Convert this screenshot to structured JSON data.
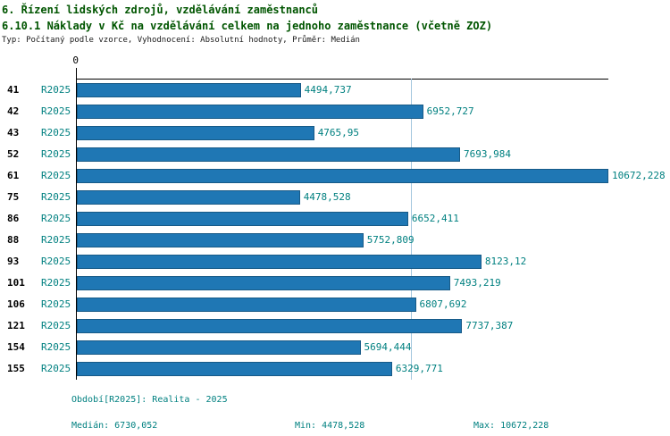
{
  "header": {
    "title_line1": "6. Řízení lidských zdrojů, vzdělávání zaměstnanců",
    "title_line2": "6.10.1 Náklady v Kč na vzdělávání celkem na jednoho zaměstnance (včetně ZOZ)",
    "subtitle": "Typ: Počítaný podle vzorce, Vyhodnocení: Absolutní hodnoty, Průměr: Medián"
  },
  "chart_data": {
    "type": "bar",
    "orientation": "horizontal",
    "title": "6.10.1 Náklady v Kč na vzdělávání celkem na jednoho zaměstnance (včetně ZOZ)",
    "categories": [
      "41",
      "42",
      "43",
      "52",
      "61",
      "75",
      "86",
      "88",
      "93",
      "101",
      "106",
      "121",
      "154",
      "155"
    ],
    "series_label": "R2025",
    "values": [
      4494.737,
      6952.727,
      4765.95,
      7693.984,
      10672.228,
      4478.528,
      6652.411,
      5752.809,
      8123.12,
      7493.219,
      6807.692,
      7737.387,
      5694.444,
      6329.771
    ],
    "value_labels": [
      "4494,737",
      "6952,727",
      "4765,95",
      "7693,984",
      "10672,228",
      "4478,528",
      "6652,411",
      "5752,809",
      "8123,12",
      "7493,219",
      "6807,692",
      "7737,387",
      "5694,444",
      "6329,771"
    ],
    "xlim": [
      0,
      10672.228
    ],
    "x_axis_ticks": [
      "0"
    ],
    "axis_zero_label": "0",
    "median": 6730.052,
    "min": 4478.528,
    "max": 10672.228,
    "grid": "single vertical reference line at median",
    "legend_position": "bottom"
  },
  "footer": {
    "period": "Období[R2025]: Realita - 2025",
    "median": "Medián: 6730,052",
    "min": "Min: 4478,528",
    "max": "Max: 10672,228"
  },
  "colors": {
    "bar": "#1f77b4",
    "bar_border": "#175a87",
    "accent_text": "#008080",
    "title_text": "#005500",
    "median_line": "#a3c6de",
    "axis": "#000000",
    "background": "#ffffff"
  }
}
